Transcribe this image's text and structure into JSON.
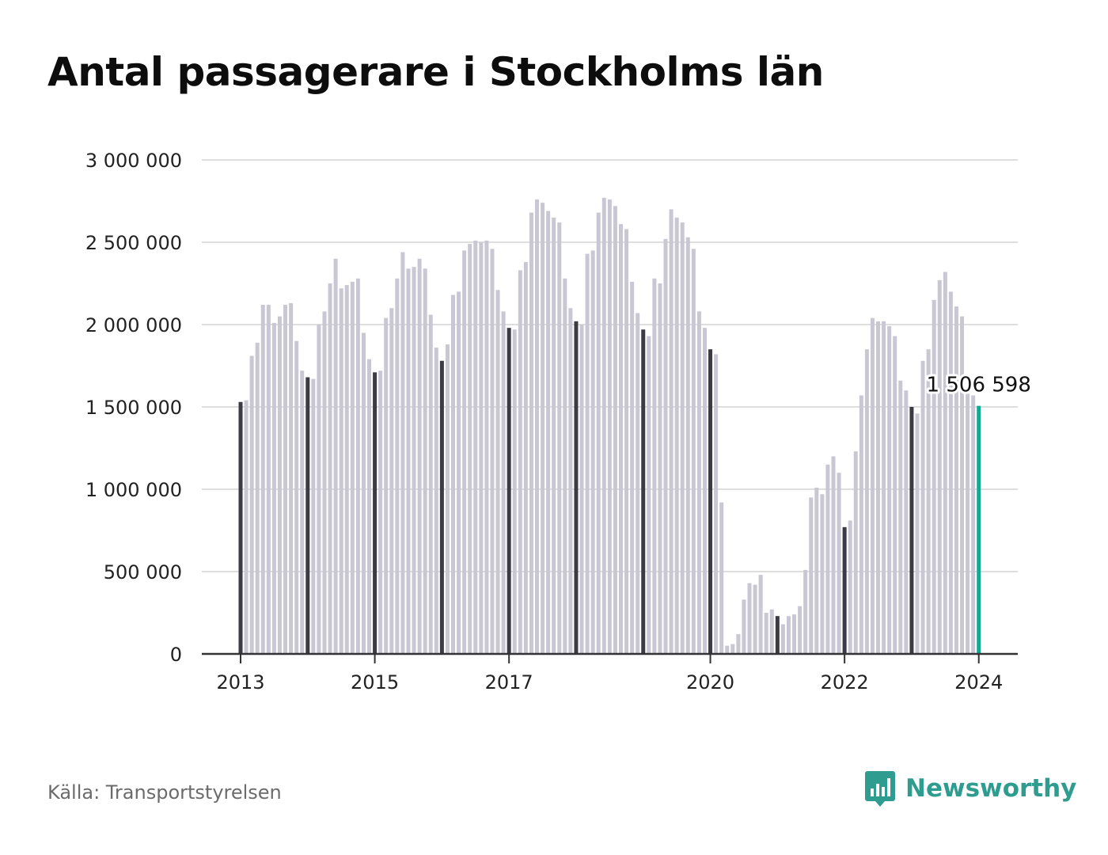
{
  "title": "Antal passagerare i Stockholms län",
  "source": "Källa: Transportstyrelsen",
  "brand": "Newsworthy",
  "colors": {
    "bar": "#c8c7d3",
    "bar_january": "#3b3a45",
    "bar_latest": "#13a894",
    "grid": "#dedede",
    "axis": "#333333",
    "brand": "#2e9c8e"
  },
  "chart_data": {
    "type": "bar",
    "title": "Antal passagerare i Stockholms län",
    "xlabel": "",
    "ylabel": "",
    "ylim": [
      0,
      3000000
    ],
    "grid": true,
    "yticks": [
      {
        "value": 0,
        "label": "0"
      },
      {
        "value": 500000,
        "label": "500 000"
      },
      {
        "value": 1000000,
        "label": "1 000 000"
      },
      {
        "value": 1500000,
        "label": "1 500 000"
      },
      {
        "value": 2000000,
        "label": "2 000 000"
      },
      {
        "value": 2500000,
        "label": "2 500 000"
      },
      {
        "value": 3000000,
        "label": "3 000 000"
      }
    ],
    "xticks": [
      {
        "month": "2013-01",
        "label": "2013"
      },
      {
        "month": "2015-01",
        "label": "2015"
      },
      {
        "month": "2017-01",
        "label": "2017"
      },
      {
        "month": "2020-01",
        "label": "2020"
      },
      {
        "month": "2022-01",
        "label": "2022"
      },
      {
        "month": "2024-01",
        "label": "2024"
      }
    ],
    "start_month": "2013-01",
    "end_month": "2024-01",
    "values": [
      1530000,
      1540000,
      1810000,
      1890000,
      2120000,
      2120000,
      2010000,
      2050000,
      2120000,
      2130000,
      1900000,
      1720000,
      1680000,
      1670000,
      2000000,
      2080000,
      2250000,
      2400000,
      2220000,
      2240000,
      2260000,
      2280000,
      1950000,
      1790000,
      1710000,
      1720000,
      2040000,
      2100000,
      2280000,
      2440000,
      2340000,
      2350000,
      2400000,
      2340000,
      2060000,
      1860000,
      1780000,
      1880000,
      2180000,
      2200000,
      2450000,
      2490000,
      2510000,
      2500000,
      2510000,
      2460000,
      2210000,
      2080000,
      1980000,
      1970000,
      2330000,
      2380000,
      2680000,
      2760000,
      2740000,
      2690000,
      2650000,
      2620000,
      2280000,
      2100000,
      2020000,
      2000000,
      2430000,
      2450000,
      2680000,
      2770000,
      2760000,
      2720000,
      2610000,
      2580000,
      2260000,
      2070000,
      1970000,
      1930000,
      2280000,
      2250000,
      2520000,
      2700000,
      2650000,
      2620000,
      2530000,
      2460000,
      2080000,
      1980000,
      1850000,
      1820000,
      920000,
      50000,
      60000,
      120000,
      330000,
      430000,
      420000,
      480000,
      250000,
      270000,
      230000,
      180000,
      230000,
      240000,
      290000,
      510000,
      950000,
      1010000,
      970000,
      1150000,
      1200000,
      1100000,
      770000,
      810000,
      1230000,
      1570000,
      1850000,
      2040000,
      2020000,
      2020000,
      1990000,
      1930000,
      1660000,
      1600000,
      1500000,
      1460000,
      1780000,
      1850000,
      2150000,
      2270000,
      2320000,
      2200000,
      2110000,
      2050000,
      1580000,
      1570000,
      1506598
    ],
    "highlight": {
      "month": "2024-01",
      "value": 1506598,
      "label": "1 506 598"
    }
  }
}
